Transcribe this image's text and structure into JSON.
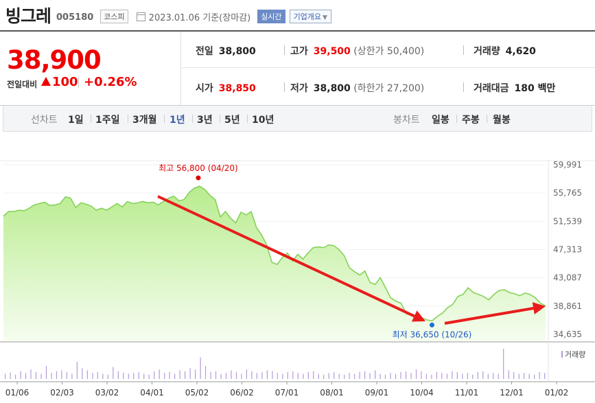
{
  "header": {
    "name": "빙그레",
    "code": "005180",
    "market": "코스피",
    "date_text": "2023.01.06 기준(장마감)",
    "realtime_label": "실시간",
    "corp_info_label": "기업개요"
  },
  "quote": {
    "price": "38,900",
    "prev_label": "전일대비",
    "change": "100",
    "change_rate": "+0.26%"
  },
  "stats": {
    "prev_close_label": "전일",
    "prev_close": "38,800",
    "high_label": "고가",
    "high": "39,500",
    "upper_limit_label": "(상한가",
    "upper_limit": "50,400)",
    "volume_label": "거래량",
    "volume": "4,620",
    "open_label": "시가",
    "open": "38,850",
    "low_label": "저가",
    "low": "38,800",
    "lower_limit_label": "(하한가",
    "lower_limit": "27,200)",
    "amount_label": "거래대금",
    "amount": "180 백만"
  },
  "tabs": {
    "line_label": "선차트",
    "line_periods": [
      "1일",
      "1주일",
      "3개월",
      "1년",
      "3년",
      "5년",
      "10년"
    ],
    "selected_period": "1년",
    "candle_label": "봉차트",
    "candle_periods": [
      "일봉",
      "주봉",
      "월봉"
    ]
  },
  "colors": {
    "up": "#e00000",
    "line": "#86d25a",
    "fill": "#c9f0a8",
    "low_marker": "#1a6fd6",
    "arrow": "#e81c1c",
    "volume": "#b39ad8"
  },
  "chart_data": {
    "type": "area",
    "title": "",
    "y_ticks": [
      "59,991",
      "55,765",
      "51,539",
      "47,313",
      "43,087",
      "38,861",
      "34,635"
    ],
    "ylim": [
      34635,
      59991
    ],
    "x_ticks": [
      "01/06",
      "02/03",
      "03/02",
      "04/01",
      "05/02",
      "06/02",
      "07/01",
      "08/01",
      "09/01",
      "10/04",
      "11/01",
      "12/01",
      "01/02"
    ],
    "high_annotation": "최고 56,800 (04/20)",
    "low_annotation": "최저 36,650 (10/26)",
    "volume_label": "거래량",
    "series": [
      {
        "values": [
          52300,
          53000,
          53000,
          53200,
          53100,
          53500,
          54000,
          54200,
          54400,
          53900,
          54000,
          54200,
          55200,
          55000,
          53600,
          54300,
          54100,
          53800,
          53200,
          53500,
          53200,
          53700,
          54200,
          53700,
          54500,
          54200,
          54300,
          54500,
          54300,
          54400,
          54000,
          54500,
          55000,
          55300,
          54600,
          54800,
          55900,
          56500,
          56800,
          56300,
          55400,
          54800,
          52200,
          53000,
          52000,
          51300,
          52900,
          52500,
          53000,
          50600,
          49500,
          48000,
          45400,
          45100,
          46100,
          46800,
          45600,
          46600,
          45900,
          46800,
          47600,
          47700,
          47600,
          48000,
          47900,
          47300,
          46400,
          44600,
          44000,
          43500,
          44100,
          42400,
          42100,
          43100,
          41600,
          40100,
          39600,
          39300,
          37700,
          37500,
          37400,
          37100,
          36800,
          36650,
          37300,
          37800,
          38600,
          39100,
          40300,
          40600,
          41600,
          40900,
          40600,
          40300,
          39800,
          40600,
          41200,
          41300,
          40900,
          40700,
          40400,
          40800,
          40600,
          40100,
          39300,
          38900
        ]
      }
    ],
    "volume": [
      12,
      15,
      10,
      18,
      14,
      22,
      16,
      12,
      30,
      14,
      18,
      20,
      16,
      12,
      40,
      25,
      20,
      14,
      16,
      12,
      10,
      28,
      18,
      15,
      12,
      14,
      16,
      12,
      10,
      18,
      22,
      14,
      16,
      12,
      20,
      18,
      25,
      22,
      50,
      30,
      16,
      18,
      12,
      14,
      20,
      16,
      12,
      22,
      18,
      14,
      16,
      20,
      18,
      14,
      12,
      16,
      18,
      14,
      12,
      16,
      18,
      12,
      10,
      14,
      16,
      12,
      10,
      14,
      12,
      16,
      18,
      14,
      20,
      12,
      10,
      14,
      12,
      16,
      18,
      14,
      22,
      18,
      12,
      10,
      16,
      14,
      12,
      18,
      16,
      12,
      14,
      10,
      16,
      18,
      12,
      14,
      12,
      70,
      20,
      16,
      12,
      14,
      12,
      10,
      16,
      14
    ]
  }
}
